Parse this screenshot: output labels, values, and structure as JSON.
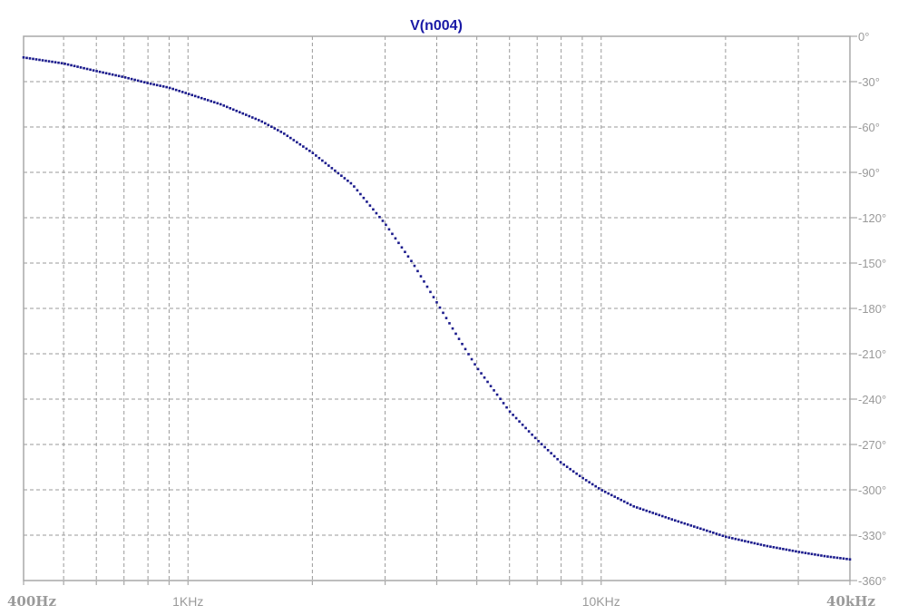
{
  "chart_data": {
    "type": "line",
    "title": "V(n004)",
    "x_scale": "log",
    "xlim": [
      400,
      40000
    ],
    "ylim": [
      -360,
      0
    ],
    "y_ticks": [
      0,
      -30,
      -60,
      -90,
      -120,
      -150,
      -180,
      -210,
      -240,
      -270,
      -300,
      -330,
      -360
    ],
    "y_tick_labels": [
      "0°",
      "-30°",
      "-60°",
      "-90°",
      "-120°",
      "-150°",
      "-180°",
      "-210°",
      "-240°",
      "-270°",
      "-300°",
      "-330°",
      "-360°"
    ],
    "x_grid": [
      400,
      500,
      600,
      700,
      800,
      900,
      1000,
      2000,
      3000,
      4000,
      5000,
      6000,
      7000,
      8000,
      9000,
      10000,
      20000,
      30000,
      40000
    ],
    "x_tick_labels": [
      {
        "x": 400,
        "label": "400Hz",
        "style": "bold"
      },
      {
        "x": 1000,
        "label": "1KHz",
        "style": "normal"
      },
      {
        "x": 10000,
        "label": "10KHz",
        "style": "normal"
      },
      {
        "x": 40000,
        "label": "40kHz",
        "style": "bold"
      }
    ],
    "grid": true,
    "series": [
      {
        "name": "V(n004)",
        "color": "#1a1a8c",
        "marker": "dot",
        "points": [
          [
            400,
            -14
          ],
          [
            500,
            -18
          ],
          [
            600,
            -23
          ],
          [
            700,
            -27
          ],
          [
            800,
            -31
          ],
          [
            900,
            -34
          ],
          [
            1000,
            -38
          ],
          [
            1200,
            -45
          ],
          [
            1500,
            -56
          ],
          [
            1700,
            -64
          ],
          [
            2000,
            -77
          ],
          [
            2500,
            -98
          ],
          [
            3000,
            -124
          ],
          [
            3500,
            -150
          ],
          [
            4000,
            -176
          ],
          [
            4500,
            -199
          ],
          [
            5000,
            -219
          ],
          [
            6000,
            -248
          ],
          [
            7000,
            -267
          ],
          [
            8000,
            -282
          ],
          [
            9000,
            -292
          ],
          [
            10000,
            -300
          ],
          [
            12000,
            -311
          ],
          [
            15000,
            -320
          ],
          [
            20000,
            -331
          ],
          [
            25000,
            -337
          ],
          [
            30000,
            -341
          ],
          [
            35000,
            -344
          ],
          [
            40000,
            -346
          ]
        ]
      }
    ]
  }
}
